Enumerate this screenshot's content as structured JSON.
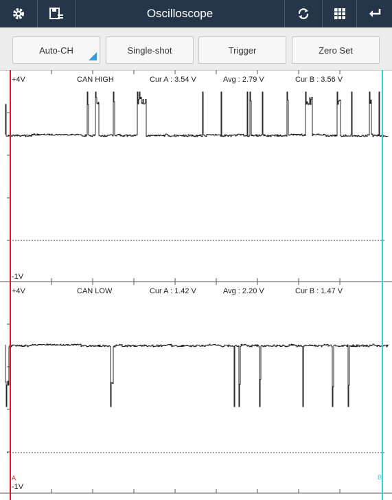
{
  "header": {
    "title": "Oscilloscope"
  },
  "toolbar": {
    "buttons": [
      "Auto-CH",
      "Single-shot",
      "Trigger",
      "Zero Set"
    ]
  },
  "channels": [
    {
      "top_label": "+4V",
      "name": "CAN HIGH",
      "cur_a": "Cur A : 3.54 V",
      "avg": "Avg : 2.79 V",
      "cur_b": "Cur B : 3.56 V",
      "bottom_label": "-1V"
    },
    {
      "top_label": "+4V",
      "name": "CAN LOW",
      "cur_a": "Cur A : 1.42 V",
      "avg": "Avg : 2.20 V",
      "cur_b": "Cur B : 1.47 V",
      "bottom_label": "-1V"
    }
  ],
  "cursors": {
    "a": "A",
    "b": "B"
  }
}
